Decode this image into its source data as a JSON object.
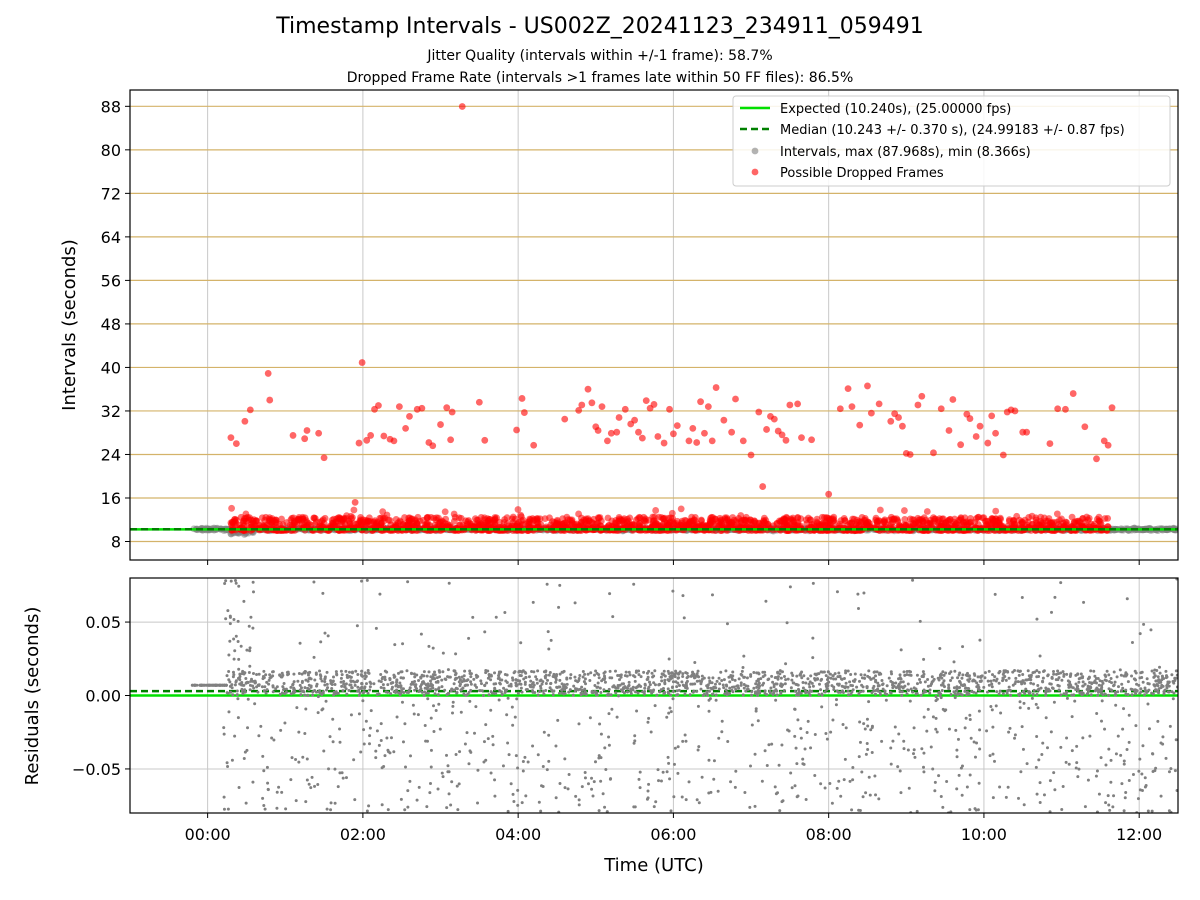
{
  "figure": {
    "title": "Timestamp Intervals - US002Z_20241123_234911_059491",
    "subtitle_1": "Jitter Quality (intervals within +/-1 frame): 58.7%",
    "subtitle_2": "Dropped Frame Rate (intervals >1 frames late within 50 FF files): 86.5%"
  },
  "chart_data": [
    {
      "type": "scatter",
      "panel": "top",
      "xlabel": "",
      "ylabel": "Intervals (seconds)",
      "x_unit": "hours (UTC)",
      "xlim": [
        -1.0,
        12.5
      ],
      "ylim": [
        4.6,
        91.0
      ],
      "yticks": [
        8,
        16,
        24,
        32,
        40,
        48,
        56,
        64,
        72,
        80,
        88
      ],
      "ytick_labels": [
        "8",
        "16",
        "24",
        "32",
        "40",
        "48",
        "56",
        "64",
        "72",
        "80",
        "88"
      ],
      "grid": "horizontal gold lines + vertical gray lines",
      "legend_position": "top-right",
      "colors": {
        "expected": "#00e000",
        "median": "#008000",
        "intervals": "#808080",
        "dropped": "#ff0000",
        "hgrid": "#d4b36a",
        "vgrid": "#c8c8c8"
      },
      "series": [
        {
          "name": "Expected (10.240s), (25.00000 fps)",
          "type": "hline",
          "y": 10.24
        },
        {
          "name": "Median (10.243 +/- 0.370 s), (24.99183 +/- 0.87 fps)",
          "type": "hline-dashed",
          "y": 10.243
        },
        {
          "name": "Intervals, max (87.968s), min (8.366s)",
          "type": "scatter-band",
          "x_range": [
            -0.2,
            12.5
          ],
          "y_center": 10.24,
          "y_max": 87.968,
          "y_min": 8.366
        },
        {
          "name": "Possible Dropped Frames",
          "type": "scatter",
          "band": {
            "x_range": [
              0.3,
              11.6
            ],
            "y_range": [
              10.0,
              12.5
            ]
          },
          "points": [
            [
              0.3,
              27.1
            ],
            [
              0.37,
              26.0
            ],
            [
              0.48,
              30.1
            ],
            [
              0.55,
              32.2
            ],
            [
              0.78,
              38.9
            ],
            [
              0.8,
              34.0
            ],
            [
              1.1,
              27.5
            ],
            [
              1.25,
              26.9
            ],
            [
              1.28,
              28.4
            ],
            [
              1.43,
              27.9
            ],
            [
              1.5,
              23.4
            ],
            [
              1.9,
              15.2
            ],
            [
              1.95,
              26.1
            ],
            [
              1.99,
              40.9
            ],
            [
              2.05,
              26.6
            ],
            [
              2.1,
              27.5
            ],
            [
              2.15,
              32.3
            ],
            [
              2.2,
              33.0
            ],
            [
              2.27,
              27.4
            ],
            [
              2.35,
              26.8
            ],
            [
              2.4,
              26.5
            ],
            [
              2.47,
              32.8
            ],
            [
              2.55,
              28.8
            ],
            [
              2.6,
              31.0
            ],
            [
              2.7,
              32.3
            ],
            [
              2.76,
              32.5
            ],
            [
              2.85,
              26.2
            ],
            [
              2.9,
              25.6
            ],
            [
              3.0,
              29.5
            ],
            [
              3.08,
              32.6
            ],
            [
              3.13,
              26.7
            ],
            [
              3.15,
              31.8
            ],
            [
              3.28,
              87.97
            ],
            [
              3.5,
              33.6
            ],
            [
              3.57,
              26.6
            ],
            [
              3.98,
              28.5
            ],
            [
              4.05,
              34.3
            ],
            [
              4.08,
              31.7
            ],
            [
              4.2,
              25.7
            ],
            [
              4.6,
              30.5
            ],
            [
              4.78,
              32.1
            ],
            [
              4.82,
              33.1
            ],
            [
              4.9,
              36.0
            ],
            [
              4.95,
              33.5
            ],
            [
              5.0,
              29.1
            ],
            [
              5.03,
              28.4
            ],
            [
              5.08,
              32.8
            ],
            [
              5.15,
              26.5
            ],
            [
              5.2,
              27.9
            ],
            [
              5.27,
              28.1
            ],
            [
              5.3,
              30.8
            ],
            [
              5.38,
              32.3
            ],
            [
              5.45,
              29.6
            ],
            [
              5.5,
              30.3
            ],
            [
              5.55,
              28.1
            ],
            [
              5.6,
              27.0
            ],
            [
              5.65,
              33.9
            ],
            [
              5.7,
              32.5
            ],
            [
              5.75,
              33.2
            ],
            [
              5.8,
              27.3
            ],
            [
              5.88,
              26.1
            ],
            [
              5.95,
              32.3
            ],
            [
              6.0,
              27.8
            ],
            [
              6.05,
              29.3
            ],
            [
              6.2,
              26.5
            ],
            [
              6.25,
              28.8
            ],
            [
              6.3,
              26.2
            ],
            [
              6.35,
              33.7
            ],
            [
              6.4,
              27.9
            ],
            [
              6.45,
              32.8
            ],
            [
              6.5,
              26.5
            ],
            [
              6.55,
              36.3
            ],
            [
              6.65,
              30.3
            ],
            [
              6.75,
              28.1
            ],
            [
              6.8,
              34.2
            ],
            [
              6.9,
              26.5
            ],
            [
              7.0,
              23.9
            ],
            [
              7.1,
              31.8
            ],
            [
              7.15,
              18.1
            ],
            [
              7.2,
              28.6
            ],
            [
              7.25,
              31.0
            ],
            [
              7.3,
              30.5
            ],
            [
              7.35,
              28.3
            ],
            [
              7.4,
              27.6
            ],
            [
              7.45,
              26.6
            ],
            [
              7.5,
              33.1
            ],
            [
              7.6,
              33.3
            ],
            [
              7.65,
              27.1
            ],
            [
              7.78,
              26.7
            ],
            [
              8.0,
              16.7
            ],
            [
              8.15,
              32.4
            ],
            [
              8.25,
              36.1
            ],
            [
              8.3,
              32.8
            ],
            [
              8.4,
              29.4
            ],
            [
              8.5,
              36.6
            ],
            [
              8.55,
              31.6
            ],
            [
              8.65,
              33.3
            ],
            [
              8.8,
              30.1
            ],
            [
              8.85,
              31.5
            ],
            [
              8.9,
              30.8
            ],
            [
              8.95,
              29.2
            ],
            [
              9.0,
              24.2
            ],
            [
              9.05,
              24.0
            ],
            [
              9.15,
              33.1
            ],
            [
              9.2,
              34.7
            ],
            [
              9.35,
              24.3
            ],
            [
              9.45,
              32.4
            ],
            [
              9.55,
              28.4
            ],
            [
              9.6,
              34.1
            ],
            [
              9.7,
              25.8
            ],
            [
              9.78,
              31.4
            ],
            [
              9.82,
              30.6
            ],
            [
              9.9,
              27.3
            ],
            [
              9.95,
              29.2
            ],
            [
              10.05,
              26.1
            ],
            [
              10.1,
              31.1
            ],
            [
              10.15,
              27.9
            ],
            [
              10.25,
              23.9
            ],
            [
              10.3,
              31.8
            ],
            [
              10.35,
              32.2
            ],
            [
              10.4,
              32.0
            ],
            [
              10.5,
              28.1
            ],
            [
              10.55,
              28.1
            ],
            [
              10.85,
              26.0
            ],
            [
              10.95,
              32.4
            ],
            [
              11.05,
              32.3
            ],
            [
              11.15,
              35.2
            ],
            [
              11.3,
              29.1
            ],
            [
              11.45,
              23.2
            ],
            [
              11.55,
              26.5
            ],
            [
              11.6,
              25.7
            ],
            [
              11.65,
              32.6
            ]
          ]
        }
      ]
    },
    {
      "type": "scatter",
      "panel": "bottom",
      "xlabel": "Time (UTC)",
      "ylabel": "Residuals (seconds)",
      "x_unit": "hours (UTC)",
      "xlim": [
        -1.0,
        12.5
      ],
      "ylim": [
        -0.08,
        0.08
      ],
      "xticks": [
        0,
        2,
        4,
        6,
        8,
        10,
        12
      ],
      "xtick_labels": [
        "00:00",
        "02:00",
        "04:00",
        "06:00",
        "08:00",
        "10:00",
        "12:00"
      ],
      "yticks": [
        -0.05,
        0.0,
        0.05
      ],
      "ytick_labels": [
        "−0.05",
        "0.00",
        "0.05"
      ],
      "grid": true,
      "series": [
        {
          "name": "Expected",
          "type": "hline",
          "y": 0.0
        },
        {
          "name": "Median",
          "type": "hline-dashed",
          "y": 0.003
        },
        {
          "name": "Residuals",
          "type": "scatter-band",
          "x_range": [
            -0.2,
            12.5
          ],
          "dense_y_range": [
            0.0,
            0.017
          ],
          "sparse_y_range": [
            -0.08,
            0.08
          ]
        }
      ]
    }
  ]
}
